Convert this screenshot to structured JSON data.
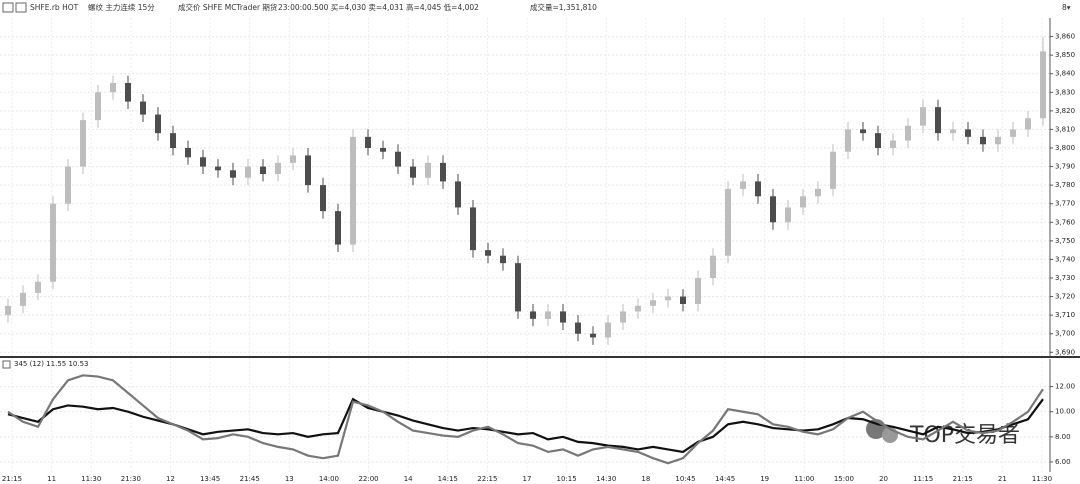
{
  "header": {
    "symbol": "SHFE.rb HOT",
    "name": "螺纹 主力连续 15分",
    "price_type": "成交价 SHFE MCTrader 期货",
    "quote": "23:00:00.500 买=4,030 卖=4,031 高=4,045 低=4,002",
    "volume": "成交量=1,351,810",
    "corner": "8▾"
  },
  "watermark": "TOP交易者",
  "x_labels": [
    "21:15",
    "11",
    "11:30",
    "21:30",
    "12",
    "13:45",
    "21:45",
    "13",
    "14:00",
    "22:00",
    "14",
    "14:15",
    "22:15",
    "17",
    "10:15",
    "14:30",
    "18",
    "10:45",
    "14:45",
    "19",
    "11:00",
    "15:00",
    "20",
    "11:15",
    "21:15",
    "21",
    "11:30"
  ],
  "chart_data": [
    {
      "type": "candlestick",
      "up_color": "#bdbdbd",
      "down_color": "#4d4d4d",
      "grid": true,
      "ylim": [
        3688,
        3870
      ],
      "yticks": [
        {
          "value": 3690,
          "label": "3,690"
        },
        {
          "value": 3700,
          "label": "3,700"
        },
        {
          "value": 3710,
          "label": "3,710"
        },
        {
          "value": 3720,
          "label": "3,720"
        },
        {
          "value": 3730,
          "label": "3,730"
        },
        {
          "value": 3740,
          "label": "3,740"
        },
        {
          "value": 3750,
          "label": "3,750"
        },
        {
          "value": 3760,
          "label": "3,760"
        },
        {
          "value": 3770,
          "label": "3,770"
        },
        {
          "value": 3780,
          "label": "3,780"
        },
        {
          "value": 3790,
          "label": "3,790"
        },
        {
          "value": 3800,
          "label": "3,800"
        },
        {
          "value": 3810,
          "label": "3,810"
        },
        {
          "value": 3820,
          "label": "3,820"
        },
        {
          "value": 3830,
          "label": "3,830"
        },
        {
          "value": 3840,
          "label": "3,840"
        },
        {
          "value": 3850,
          "label": "3,850"
        },
        {
          "value": 3860,
          "label": "3,860"
        }
      ],
      "open": [
        3710,
        3715,
        3722,
        3728,
        3770,
        3790,
        3815,
        3830,
        3835,
        3825,
        3818,
        3808,
        3800,
        3795,
        3790,
        3788,
        3784,
        3790,
        3786,
        3792,
        3796,
        3780,
        3766,
        3748,
        3806,
        3800,
        3798,
        3790,
        3784,
        3792,
        3782,
        3768,
        3745,
        3742,
        3738,
        3712,
        3708,
        3712,
        3706,
        3700,
        3698,
        3706,
        3712,
        3715,
        3718,
        3720,
        3716,
        3730,
        3742,
        3778,
        3782,
        3774,
        3760,
        3768,
        3774,
        3778,
        3798,
        3810,
        3808,
        3800,
        3804,
        3812,
        3822,
        3808,
        3810,
        3806,
        3802,
        3806,
        3810,
        3816
      ],
      "high": [
        3719,
        3726,
        3732,
        3774,
        3794,
        3819,
        3834,
        3839,
        3839,
        3829,
        3822,
        3812,
        3804,
        3799,
        3794,
        3792,
        3794,
        3794,
        3796,
        3800,
        3800,
        3784,
        3770,
        3810,
        3810,
        3804,
        3802,
        3794,
        3796,
        3796,
        3786,
        3772,
        3749,
        3746,
        3742,
        3716,
        3716,
        3716,
        3710,
        3704,
        3710,
        3716,
        3719,
        3722,
        3724,
        3724,
        3734,
        3746,
        3782,
        3786,
        3786,
        3778,
        3772,
        3778,
        3782,
        3802,
        3814,
        3814,
        3812,
        3808,
        3816,
        3826,
        3826,
        3814,
        3814,
        3810,
        3810,
        3814,
        3820,
        3860
      ],
      "low": [
        3706,
        3711,
        3718,
        3724,
        3766,
        3786,
        3811,
        3826,
        3821,
        3814,
        3804,
        3796,
        3791,
        3786,
        3784,
        3780,
        3780,
        3782,
        3782,
        3788,
        3776,
        3762,
        3744,
        3744,
        3796,
        3794,
        3786,
        3780,
        3780,
        3778,
        3764,
        3741,
        3738,
        3734,
        3708,
        3704,
        3704,
        3702,
        3696,
        3694,
        3694,
        3702,
        3708,
        3711,
        3714,
        3712,
        3712,
        3726,
        3738,
        3774,
        3770,
        3756,
        3756,
        3764,
        3770,
        3774,
        3794,
        3804,
        3796,
        3796,
        3800,
        3808,
        3804,
        3804,
        3802,
        3798,
        3798,
        3802,
        3806,
        3812
      ],
      "close": [
        3715,
        3722,
        3728,
        3770,
        3790,
        3815,
        3830,
        3835,
        3825,
        3818,
        3808,
        3800,
        3795,
        3790,
        3788,
        3784,
        3790,
        3786,
        3792,
        3796,
        3780,
        3766,
        3748,
        3806,
        3800,
        3798,
        3790,
        3784,
        3792,
        3782,
        3768,
        3745,
        3742,
        3738,
        3712,
        3708,
        3712,
        3706,
        3700,
        3698,
        3706,
        3712,
        3715,
        3718,
        3720,
        3716,
        3730,
        3742,
        3778,
        3782,
        3774,
        3760,
        3768,
        3774,
        3778,
        3798,
        3810,
        3808,
        3800,
        3804,
        3812,
        3822,
        3808,
        3810,
        3806,
        3802,
        3806,
        3810,
        3816,
        3852
      ]
    },
    {
      "type": "line",
      "legend": "345 (12) 11.55 10.53",
      "ylim": [
        5.2,
        14.2
      ],
      "grid": true,
      "yticks": [
        {
          "value": 6,
          "label": "6.00"
        },
        {
          "value": 8,
          "label": "8.00"
        },
        {
          "value": 10,
          "label": "10.00"
        },
        {
          "value": 12,
          "label": "12.00"
        }
      ],
      "series": [
        {
          "color": "#111111",
          "values": [
            9.8,
            9.5,
            9.2,
            10.2,
            10.5,
            10.4,
            10.2,
            10.3,
            10.0,
            9.6,
            9.3,
            9.0,
            8.6,
            8.2,
            8.4,
            8.5,
            8.6,
            8.3,
            8.2,
            8.3,
            8.0,
            8.2,
            8.3,
            11.0,
            10.3,
            10.0,
            9.7,
            9.3,
            9.0,
            8.7,
            8.5,
            8.7,
            8.6,
            8.4,
            8.2,
            8.3,
            7.8,
            8.0,
            7.6,
            7.5,
            7.3,
            7.2,
            7.0,
            7.2,
            7.0,
            6.8,
            7.6,
            8.0,
            9.0,
            9.2,
            9.0,
            8.7,
            8.6,
            8.5,
            8.6,
            9.0,
            9.5,
            9.4,
            9.0,
            8.8,
            8.5,
            8.2,
            8.8,
            8.6,
            8.3,
            8.4,
            8.6,
            9.0,
            9.4,
            11.0
          ]
        },
        {
          "color": "#777777",
          "values": [
            10.0,
            9.2,
            8.8,
            11.0,
            12.5,
            12.9,
            12.8,
            12.5,
            11.5,
            10.5,
            9.5,
            9.0,
            8.5,
            7.8,
            7.9,
            8.2,
            8.0,
            7.5,
            7.2,
            7.0,
            6.5,
            6.3,
            6.5,
            10.8,
            10.5,
            10.0,
            9.2,
            8.5,
            8.3,
            8.1,
            8.0,
            8.5,
            8.8,
            8.2,
            7.5,
            7.3,
            6.8,
            7.0,
            6.5,
            7.0,
            7.2,
            7.0,
            6.8,
            6.3,
            5.9,
            6.3,
            7.5,
            8.5,
            10.2,
            10.0,
            9.8,
            9.0,
            8.8,
            8.4,
            8.2,
            8.6,
            9.5,
            10.0,
            9.2,
            8.5,
            8.0,
            7.8,
            8.5,
            9.2,
            8.5,
            8.3,
            8.5,
            9.2,
            10.0,
            11.8
          ]
        }
      ]
    }
  ]
}
